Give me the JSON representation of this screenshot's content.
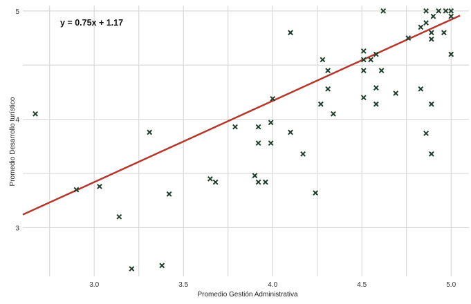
{
  "chart_data": {
    "type": "scatter",
    "title": "",
    "xlabel": "Promedio Gestión Administrativa",
    "ylabel": "Promedio Desarrollo turístico",
    "xlim": [
      2.6,
      5.1
    ],
    "ylim": [
      2.55,
      5.05
    ],
    "x_ticks": [
      "3.0",
      "3.5",
      "4.0",
      "4.5",
      "5.0"
    ],
    "y_ticks": [
      "3",
      "4",
      "5"
    ],
    "grid": true,
    "marker": "x",
    "point_color": "#1f3d2b",
    "trendline": {
      "slope": 0.75,
      "intercept": 1.17,
      "color": "#b5372c",
      "label": "y = 0.75x + 1.17"
    },
    "points": [
      [
        2.67,
        4.05
      ],
      [
        2.9,
        3.35
      ],
      [
        3.03,
        3.38
      ],
      [
        3.14,
        3.1
      ],
      [
        3.21,
        2.62
      ],
      [
        3.31,
        3.88
      ],
      [
        3.38,
        2.65
      ],
      [
        3.42,
        3.31
      ],
      [
        3.65,
        3.45
      ],
      [
        3.68,
        3.42
      ],
      [
        3.79,
        3.93
      ],
      [
        3.9,
        3.48
      ],
      [
        3.92,
        3.42
      ],
      [
        3.92,
        3.78
      ],
      [
        3.92,
        3.93
      ],
      [
        3.96,
        3.42
      ],
      [
        3.99,
        3.78
      ],
      [
        3.99,
        3.97
      ],
      [
        4.0,
        4.19
      ],
      [
        4.1,
        3.88
      ],
      [
        4.1,
        4.8
      ],
      [
        4.17,
        3.68
      ],
      [
        4.24,
        3.32
      ],
      [
        4.27,
        4.14
      ],
      [
        4.28,
        4.55
      ],
      [
        4.31,
        4.28
      ],
      [
        4.31,
        4.45
      ],
      [
        4.34,
        4.05
      ],
      [
        4.51,
        4.2
      ],
      [
        4.51,
        4.45
      ],
      [
        4.51,
        4.55
      ],
      [
        4.51,
        4.63
      ],
      [
        4.55,
        4.55
      ],
      [
        4.58,
        4.14
      ],
      [
        4.58,
        4.29
      ],
      [
        4.58,
        4.6
      ],
      [
        4.61,
        4.45
      ],
      [
        4.62,
        5.0
      ],
      [
        4.69,
        4.24
      ],
      [
        4.76,
        4.75
      ],
      [
        4.83,
        4.28
      ],
      [
        4.83,
        4.85
      ],
      [
        4.86,
        4.89
      ],
      [
        4.86,
        5.0
      ],
      [
        4.86,
        3.87
      ],
      [
        4.89,
        3.68
      ],
      [
        4.89,
        4.14
      ],
      [
        4.89,
        4.74
      ],
      [
        4.89,
        4.8
      ],
      [
        4.9,
        4.95
      ],
      [
        4.93,
        5.0
      ],
      [
        4.96,
        4.8
      ],
      [
        4.97,
        5.0
      ],
      [
        5.0,
        4.6
      ],
      [
        5.0,
        4.95
      ],
      [
        5.0,
        5.0
      ]
    ]
  }
}
